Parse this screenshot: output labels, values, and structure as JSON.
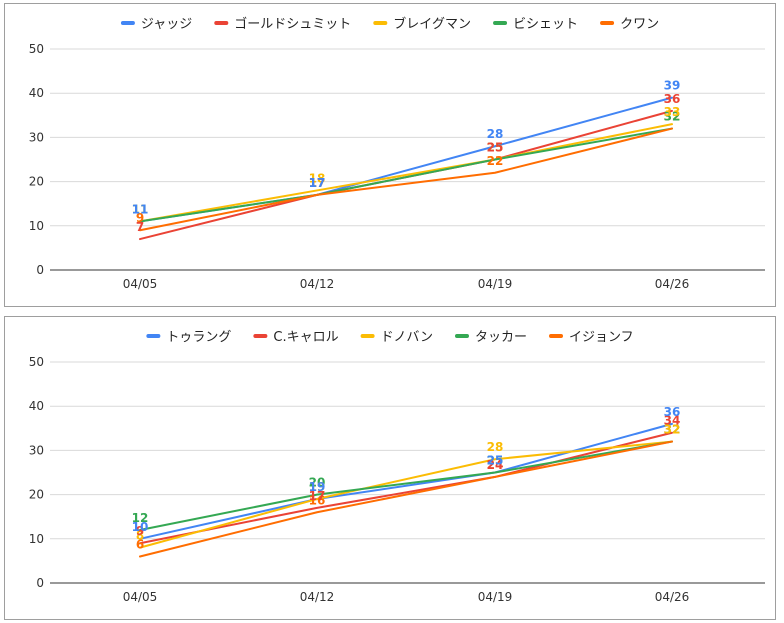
{
  "chart_data": [
    {
      "type": "line",
      "categories": [
        "04/05",
        "04/12",
        "04/19",
        "04/26"
      ],
      "ylim": [
        0,
        50
      ],
      "yticks": [
        0,
        10,
        20,
        30,
        40,
        50
      ],
      "grid": true,
      "legend_position": "top",
      "series": [
        {
          "name": "ジャッジ",
          "color": "#4285F4",
          "values": [
            11,
            17,
            28,
            39
          ]
        },
        {
          "name": "ゴールドシュミット",
          "color": "#EA4335",
          "values": [
            7,
            17,
            25,
            36
          ]
        },
        {
          "name": "ブレイグマン",
          "color": "#FBBC04",
          "values": [
            11,
            18,
            25,
            33
          ]
        },
        {
          "name": "ビシェット",
          "color": "#34A853",
          "values": [
            11,
            17,
            25,
            32
          ]
        },
        {
          "name": "クワン",
          "color": "#FF6D01",
          "values": [
            9,
            17,
            22,
            32
          ]
        }
      ]
    },
    {
      "type": "line",
      "categories": [
        "04/05",
        "04/12",
        "04/19",
        "04/26"
      ],
      "ylim": [
        0,
        50
      ],
      "yticks": [
        0,
        10,
        20,
        30,
        40,
        50
      ],
      "grid": true,
      "legend_position": "top",
      "series": [
        {
          "name": "トゥラング",
          "color": "#4285F4",
          "values": [
            10,
            19,
            25,
            36
          ]
        },
        {
          "name": "C.キャロル",
          "color": "#EA4335",
          "values": [
            9,
            17,
            24,
            34
          ]
        },
        {
          "name": "ドノバン",
          "color": "#FBBC04",
          "values": [
            8,
            19,
            28,
            32
          ]
        },
        {
          "name": "タッカー",
          "color": "#34A853",
          "values": [
            12,
            20,
            25,
            32
          ]
        },
        {
          "name": "イジョンフ",
          "color": "#FF6D01",
          "values": [
            6,
            16,
            24,
            32
          ]
        }
      ]
    }
  ]
}
